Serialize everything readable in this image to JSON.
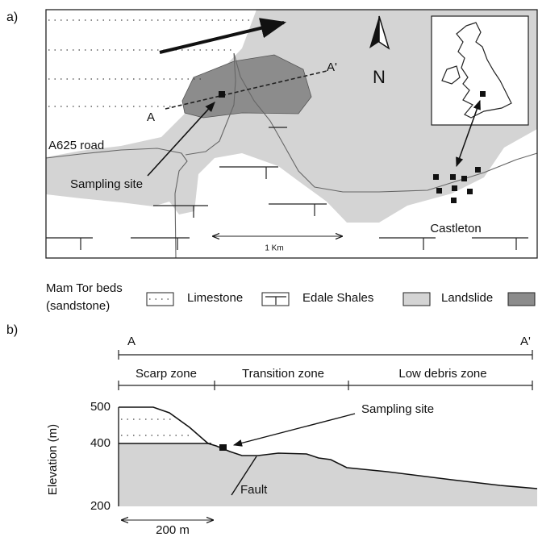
{
  "panel_a": {
    "label": "a)",
    "section_start": "A",
    "section_end": "A'",
    "north": "N",
    "road": "A625 road",
    "sampling_site": "Sampling site",
    "scale": "1 Km",
    "town": "Castleton"
  },
  "legend": {
    "title_lines": [
      "Mam Tor beds",
      "(sandstone)"
    ],
    "items": [
      "Limestone",
      "Edale Shales",
      "Landslide"
    ]
  },
  "panel_b": {
    "label": "b)",
    "section_start": "A",
    "section_end": "A'",
    "zones": [
      "Scarp zone",
      "Transition zone",
      "Low debris zone"
    ],
    "y_axis_label": "Elevation (m)",
    "y_ticks": [
      500,
      400,
      200
    ],
    "sampling_site": "Sampling site",
    "fault": "Fault",
    "scale": "200 m"
  }
}
